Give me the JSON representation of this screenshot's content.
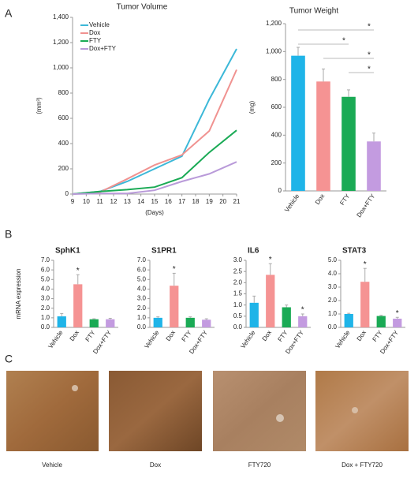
{
  "panel_labels": [
    "A",
    "B",
    "C"
  ],
  "images": {
    "captions": [
      "Vehicle",
      "Dox",
      "FTY720",
      "Dox + FTY720"
    ]
  },
  "chart_data": [
    {
      "type": "line",
      "title": "Tumor Volume",
      "x_label": "(Days)",
      "y_label": "(mm³)",
      "x": [
        9,
        11,
        13,
        15,
        17,
        19,
        21
      ],
      "xlim": [
        9,
        21
      ],
      "xticks": [
        9,
        10,
        11,
        12,
        13,
        14,
        15,
        16,
        17,
        18,
        19,
        20,
        21
      ],
      "ylim": [
        0,
        1400
      ],
      "yticks": [
        0,
        200,
        400,
        600,
        800,
        {
          "value": 1000,
          "label": "1,000"
        },
        {
          "value": 1200,
          "label": "1,200"
        },
        {
          "value": 1400,
          "label": "1,400"
        }
      ],
      "legend": "top-left",
      "series": [
        {
          "name": "Vehicle",
          "color": "#3cb8d8",
          "values": [
            0,
            20,
            100,
            200,
            300,
            750,
            1150
          ]
        },
        {
          "name": "Dox",
          "color": "#f09290",
          "values": [
            0,
            15,
            120,
            230,
            310,
            500,
            985
          ]
        },
        {
          "name": "FTY",
          "color": "#1aaa55",
          "values": [
            0,
            20,
            35,
            55,
            130,
            330,
            505
          ]
        },
        {
          "name": "Dox+FTY",
          "color": "#b99ad9",
          "values": [
            0,
            5,
            5,
            30,
            100,
            160,
            255
          ]
        }
      ]
    },
    {
      "type": "bar",
      "title": "Tumor Weight",
      "y_label": "(mg)",
      "categories": [
        "Vehicle",
        "Dox",
        "FTY",
        "Dox+FTY"
      ],
      "values": [
        970,
        785,
        675,
        355
      ],
      "errors": [
        60,
        90,
        50,
        60
      ],
      "colors": [
        "#1fb4e8",
        "#f59393",
        "#1aaa55",
        "#c39be0"
      ],
      "ylim": [
        0,
        1200
      ],
      "yticks": [
        0,
        200,
        400,
        600,
        800,
        {
          "value": 1000,
          "label": "1,000"
        },
        {
          "value": 1200,
          "label": "1,200"
        }
      ],
      "brackets": [
        {
          "from": 0,
          "to": 3,
          "text": "*"
        },
        {
          "from": 0,
          "to": 2,
          "text": "*"
        },
        {
          "from": 1,
          "to": 3,
          "text": "*"
        },
        {
          "from": 2,
          "to": 3,
          "text": "*"
        }
      ]
    },
    {
      "type": "bar",
      "title": "SphK1",
      "y_label": "mRNA expression",
      "categories": [
        "Vehicle",
        "Dox",
        "FTY",
        "Dox+FTY"
      ],
      "values": [
        1.15,
        4.5,
        0.85,
        0.85
      ],
      "errors": [
        0.3,
        1.0,
        0.05,
        0.1
      ],
      "colors": [
        "#1fb4e8",
        "#f59393",
        "#1aaa55",
        "#c39be0"
      ],
      "ylim": [
        0,
        7
      ],
      "yticks": [
        {
          "value": 0,
          "label": "0.0"
        },
        {
          "value": 1,
          "label": "1.0"
        },
        {
          "value": 2,
          "label": "2.0"
        },
        {
          "value": 3,
          "label": "3.0"
        },
        {
          "value": 4,
          "label": "4.0"
        },
        {
          "value": 5,
          "label": "5.0"
        },
        {
          "value": 6,
          "label": "6.0"
        },
        {
          "value": 7,
          "label": "7.0"
        }
      ],
      "annotations": [
        {
          "text": "*",
          "category": 1
        }
      ]
    },
    {
      "type": "bar",
      "title": "S1PR1",
      "categories": [
        "Vehicle",
        "Dox",
        "FTY",
        "Dox+FTY"
      ],
      "values": [
        1.0,
        4.35,
        1.0,
        0.8
      ],
      "errors": [
        0.1,
        1.3,
        0.1,
        0.1
      ],
      "colors": [
        "#1fb4e8",
        "#f59393",
        "#1aaa55",
        "#c39be0"
      ],
      "ylim": [
        0,
        7
      ],
      "yticks": [
        {
          "value": 0,
          "label": "0.0"
        },
        {
          "value": 1,
          "label": "1.0"
        },
        {
          "value": 2,
          "label": "2.0"
        },
        {
          "value": 3,
          "label": "3.0"
        },
        {
          "value": 4,
          "label": "4.0"
        },
        {
          "value": 5,
          "label": "5.0"
        },
        {
          "value": 6,
          "label": "6.0"
        },
        {
          "value": 7,
          "label": "7.0"
        }
      ],
      "annotations": [
        {
          "text": "*",
          "category": 1
        }
      ]
    },
    {
      "type": "bar",
      "title": "IL6",
      "categories": [
        "Vehicle",
        "Dox",
        "FTY",
        "Dox+FTY"
      ],
      "values": [
        1.1,
        2.35,
        0.9,
        0.5
      ],
      "errors": [
        0.3,
        0.5,
        0.1,
        0.1
      ],
      "colors": [
        "#1fb4e8",
        "#f59393",
        "#1aaa55",
        "#c39be0"
      ],
      "ylim": [
        0,
        3
      ],
      "yticks": [
        {
          "value": 0,
          "label": "0.0"
        },
        0.5,
        {
          "value": 1,
          "label": "1.0"
        },
        1.5,
        {
          "value": 2,
          "label": "2.0"
        },
        2.5,
        {
          "value": 3,
          "label": "3.0"
        }
      ],
      "annotations": [
        {
          "text": "*",
          "category": 1
        },
        {
          "text": "*",
          "category": 3
        }
      ]
    },
    {
      "type": "bar",
      "title": "STAT3",
      "categories": [
        "Vehicle",
        "Dox",
        "FTY",
        "Dox+FTY"
      ],
      "values": [
        1.0,
        3.4,
        0.85,
        0.65
      ],
      "errors": [
        0.05,
        1.0,
        0.05,
        0.1
      ],
      "colors": [
        "#1fb4e8",
        "#f59393",
        "#1aaa55",
        "#c39be0"
      ],
      "ylim": [
        0,
        5
      ],
      "yticks": [
        {
          "value": 0,
          "label": "0.0"
        },
        {
          "value": 1,
          "label": "1.0"
        },
        {
          "value": 2,
          "label": "2.0"
        },
        {
          "value": 3,
          "label": "3.0"
        },
        {
          "value": 4,
          "label": "4.0"
        },
        {
          "value": 5,
          "label": "5.0"
        }
      ],
      "annotations": [
        {
          "text": "*",
          "category": 1
        },
        {
          "text": "*",
          "category": 3
        }
      ]
    }
  ]
}
